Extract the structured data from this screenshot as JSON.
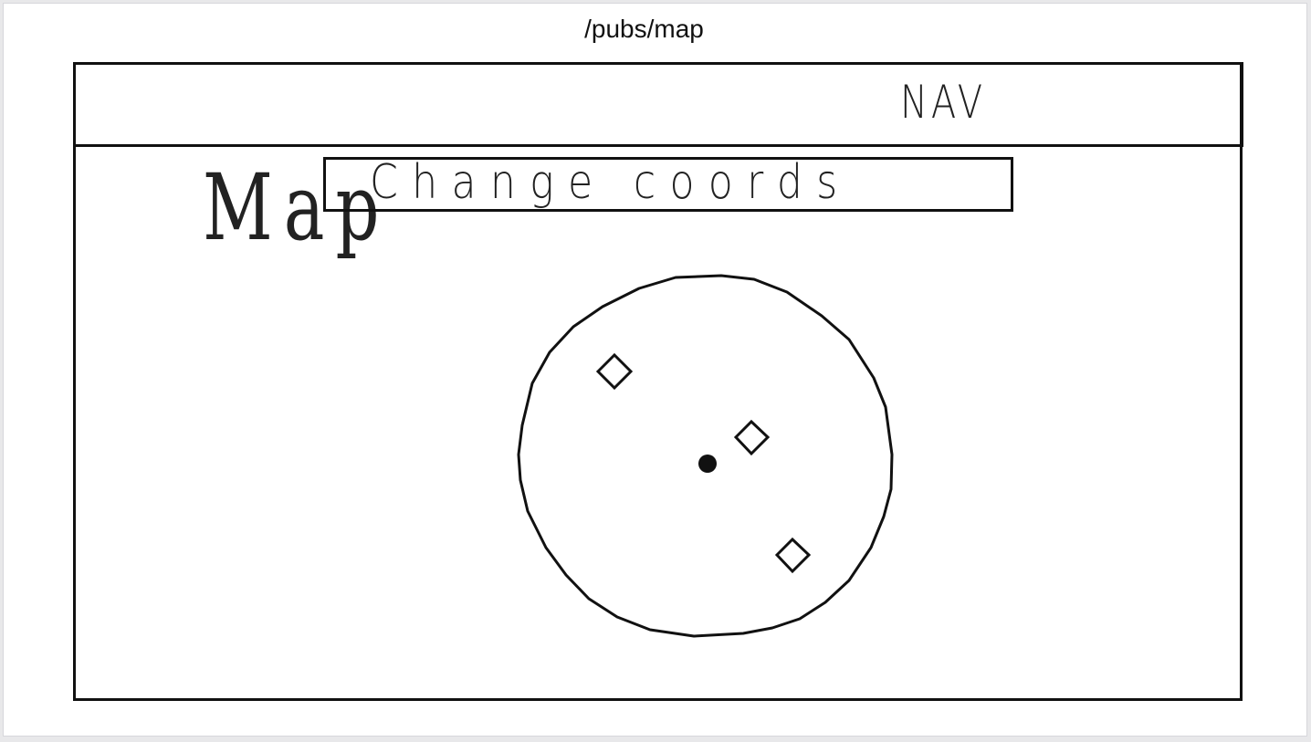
{
  "page": {
    "route": "/pubs/map"
  },
  "nav": {
    "label": "NAV"
  },
  "map": {
    "heading": "Map",
    "change_coords_label": "Change coords"
  },
  "markers": {
    "user_location": "current-location",
    "pub_count": 3
  }
}
